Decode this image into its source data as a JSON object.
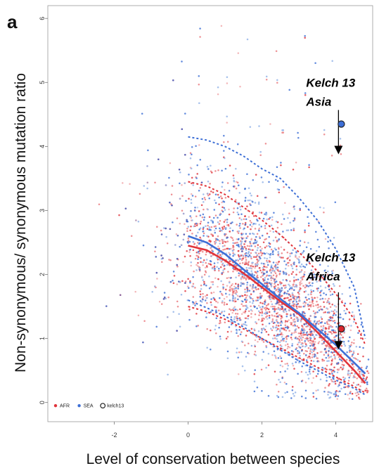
{
  "chart_data": {
    "type": "scatter",
    "panel_label": "a",
    "title": "",
    "xlabel": "Level of conservation between species",
    "ylabel": "Non-synonymous/ synonymous mutation ratio",
    "xlim": [
      -3.8,
      5.0
    ],
    "ylim": [
      -0.3,
      6.2
    ],
    "x_ticks": [
      -2,
      0,
      2,
      4
    ],
    "x_tick_labels": [
      "-2",
      "0",
      "2",
      "4"
    ],
    "y_ticks": [
      0,
      1,
      2,
      3,
      4,
      5,
      6
    ],
    "y_tick_labels": [
      "0",
      "1",
      "2",
      "3",
      "4",
      "5",
      "6"
    ],
    "grid": false,
    "legend_position": "bottom-left",
    "legend": [
      {
        "label": "AFR",
        "color": "#e0333a",
        "marker": "dot"
      },
      {
        "label": "SEA",
        "color": "#3d6fd6",
        "marker": "dot"
      },
      {
        "label": "kelch13",
        "color": "#222222",
        "marker": "open-circle"
      }
    ],
    "series": [
      {
        "name": "AFR",
        "color": "#e0333a",
        "point_cloud": {
          "x_range": [
            -3.5,
            4.9
          ],
          "approx_points": 2500
        },
        "trend": {
          "x": [
            0,
            0.5,
            1,
            1.5,
            2,
            2.5,
            3,
            3.5,
            4,
            4.5,
            4.8
          ],
          "y": [
            2.45,
            2.38,
            2.22,
            2.02,
            1.8,
            1.58,
            1.38,
            1.1,
            0.8,
            0.5,
            0.3
          ]
        },
        "upper_band": {
          "x": [
            0,
            0.5,
            1,
            1.5,
            2,
            2.5,
            3,
            3.5,
            4,
            4.5,
            4.8
          ],
          "y": [
            3.45,
            3.38,
            3.25,
            3.05,
            2.85,
            2.62,
            2.35,
            2.05,
            1.7,
            1.3,
            0.9
          ]
        },
        "lower_band": {
          "x": [
            0,
            0.5,
            1,
            1.5,
            2,
            2.5,
            3,
            3.5,
            4,
            4.5,
            4.8
          ],
          "y": [
            1.5,
            1.42,
            1.3,
            1.15,
            1.0,
            0.85,
            0.7,
            0.55,
            0.4,
            0.25,
            0.15
          ]
        }
      },
      {
        "name": "SEA",
        "color": "#3d6fd6",
        "point_cloud": {
          "x_range": [
            -3.5,
            4.9
          ],
          "approx_points": 2500
        },
        "trend": {
          "x": [
            0,
            0.5,
            1,
            1.5,
            2,
            2.5,
            3,
            3.5,
            4,
            4.5,
            4.8
          ],
          "y": [
            2.6,
            2.5,
            2.32,
            2.08,
            1.85,
            1.62,
            1.4,
            1.15,
            0.9,
            0.62,
            0.45
          ]
        },
        "upper_band": {
          "x": [
            0,
            0.5,
            1,
            1.5,
            2,
            2.5,
            3,
            3.5,
            4,
            4.5,
            4.8
          ],
          "y": [
            4.15,
            4.1,
            4.0,
            3.85,
            3.65,
            3.5,
            3.2,
            2.85,
            2.4,
            1.8,
            1.0
          ]
        },
        "lower_band": {
          "x": [
            0,
            0.5,
            1,
            1.5,
            2,
            2.5,
            3,
            3.5,
            4,
            4.5,
            4.8
          ],
          "y": [
            1.6,
            1.48,
            1.35,
            1.18,
            1.0,
            0.82,
            0.65,
            0.5,
            0.35,
            0.22,
            0.12
          ]
        }
      }
    ],
    "annotations": [
      {
        "line1": "Kelch 13",
        "line2": "Asia",
        "x": 4.15,
        "y": 4.35,
        "color": "#3d6fd6",
        "arrow_to_y": 3.9
      },
      {
        "line1": "Kelch 13",
        "line2": "Africa",
        "x": 4.15,
        "y": 1.15,
        "color": "#d8262c",
        "arrow_to_y": 0.85
      }
    ]
  }
}
